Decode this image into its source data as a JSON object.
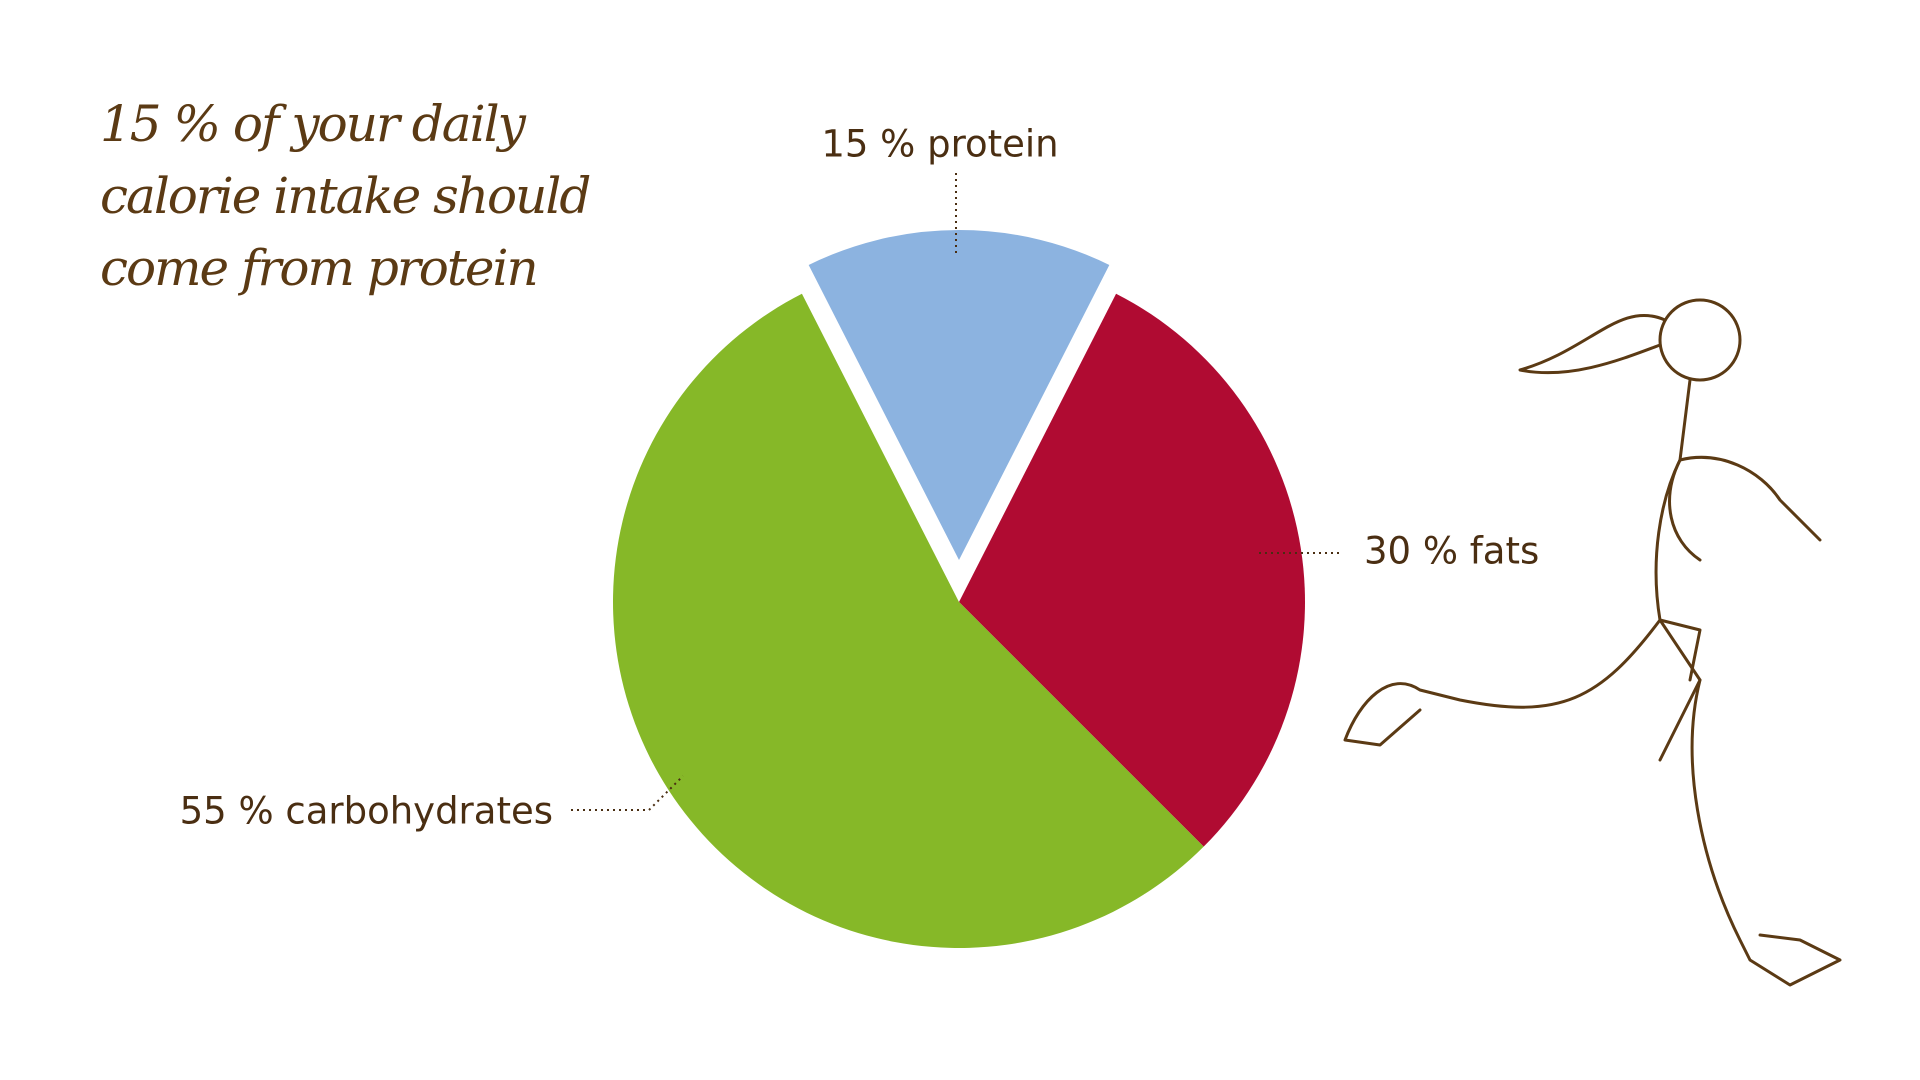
{
  "chart_data": {
    "type": "pie",
    "title": [
      "15 % of your daily",
      "calorie intake should",
      "come from protein"
    ],
    "values": [
      15,
      30,
      55
    ],
    "value_labels": [
      "15 % protein",
      "30 % fats",
      "55 % carbohydrates"
    ],
    "colors": [
      "#8cb3e0",
      "#b00b32",
      "#86b828"
    ]
  }
}
